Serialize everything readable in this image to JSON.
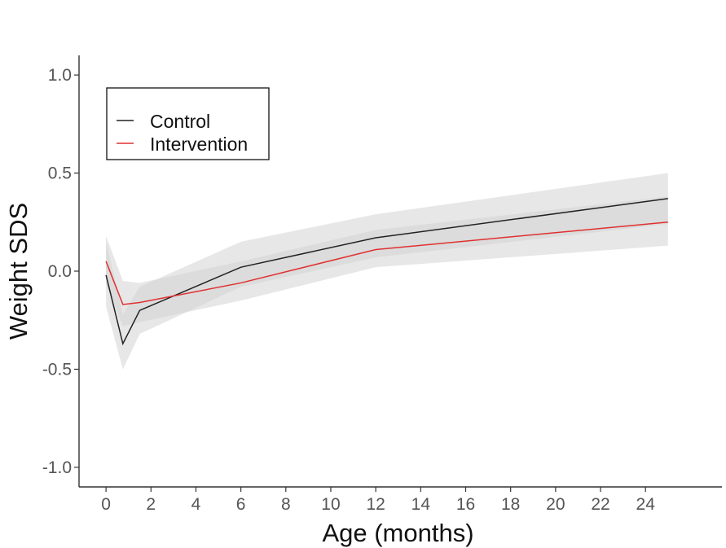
{
  "chart_data": {
    "type": "line",
    "title": "",
    "xlabel": "Age (months)",
    "ylabel": "Weight SDS",
    "xlim": [
      -1.2,
      27.4
    ],
    "ylim": [
      -1.1,
      1.1
    ],
    "xticks": [
      0,
      2,
      4,
      6,
      8,
      10,
      12,
      14,
      16,
      18,
      20,
      22,
      24
    ],
    "yticks": [
      -1.0,
      -0.5,
      0.0,
      0.5,
      1.0
    ],
    "ytick_labels": [
      "-1.0",
      "-0.5",
      "0.0",
      "0.5",
      "1.0"
    ],
    "grid": false,
    "legend_position": "top-left",
    "series": [
      {
        "name": "Control",
        "color": "#222222",
        "x": [
          0,
          0.75,
          1.5,
          6,
          12,
          25
        ],
        "y": [
          -0.02,
          -0.37,
          -0.2,
          0.02,
          0.17,
          0.37
        ],
        "ci_lower": [
          -0.18,
          -0.5,
          -0.32,
          -0.08,
          0.07,
          0.24
        ],
        "ci_upper": [
          0.15,
          -0.22,
          -0.08,
          0.15,
          0.29,
          0.5
        ]
      },
      {
        "name": "Intervention",
        "color": "#e03030",
        "x": [
          0,
          0.75,
          1.5,
          6,
          12,
          25
        ],
        "y": [
          0.05,
          -0.17,
          -0.16,
          -0.06,
          0.11,
          0.25
        ],
        "ci_lower": [
          -0.07,
          -0.28,
          -0.26,
          -0.15,
          0.02,
          0.13
        ],
        "ci_upper": [
          0.18,
          -0.05,
          -0.06,
          0.05,
          0.21,
          0.38
        ]
      }
    ],
    "band_color": "#d3d3d3"
  }
}
